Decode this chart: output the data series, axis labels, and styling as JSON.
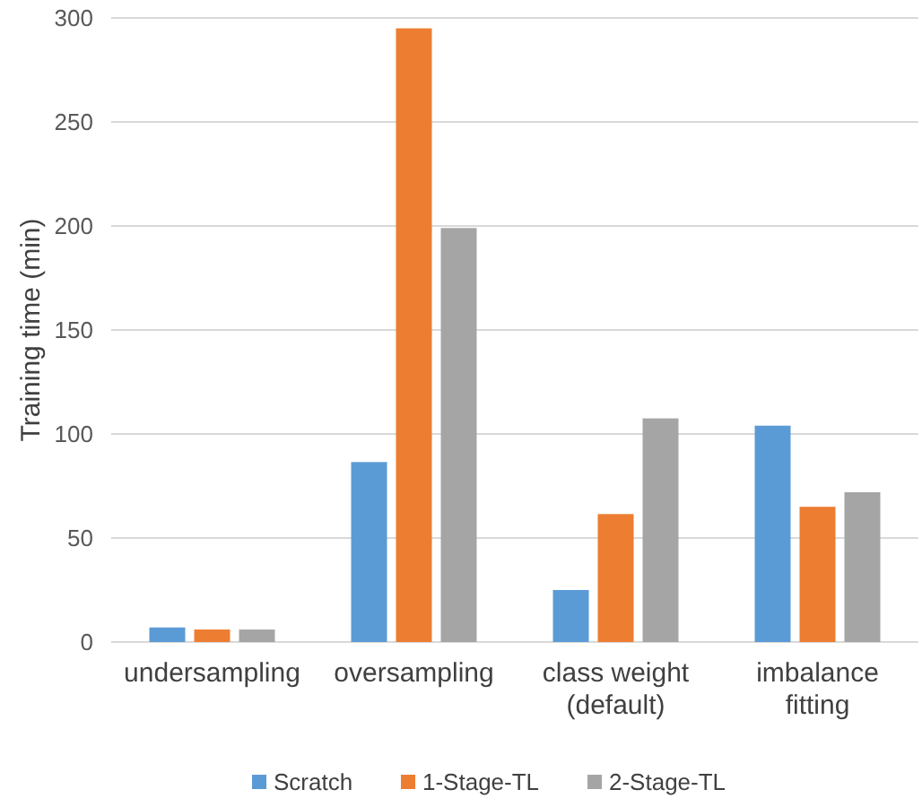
{
  "chart_data": {
    "type": "bar",
    "ylabel": "Training time (min)",
    "categories": [
      "undersampling",
      "oversampling",
      "class weight\n(default)",
      "imbalance\nfitting"
    ],
    "series": [
      {
        "name": "Scratch",
        "color": "#5b9bd5",
        "values": [
          7,
          86.5,
          25,
          104
        ]
      },
      {
        "name": "1-Stage-TL",
        "color": "#ed7d31",
        "values": [
          6,
          295,
          61.5,
          65
        ]
      },
      {
        "name": "2-Stage-TL",
        "color": "#a5a5a5",
        "values": [
          6,
          199,
          107.5,
          72
        ]
      }
    ],
    "ylim": [
      0,
      300
    ],
    "yticks": [
      0,
      50,
      100,
      150,
      200,
      250,
      300
    ],
    "grid": "y",
    "legend": "bottom"
  }
}
